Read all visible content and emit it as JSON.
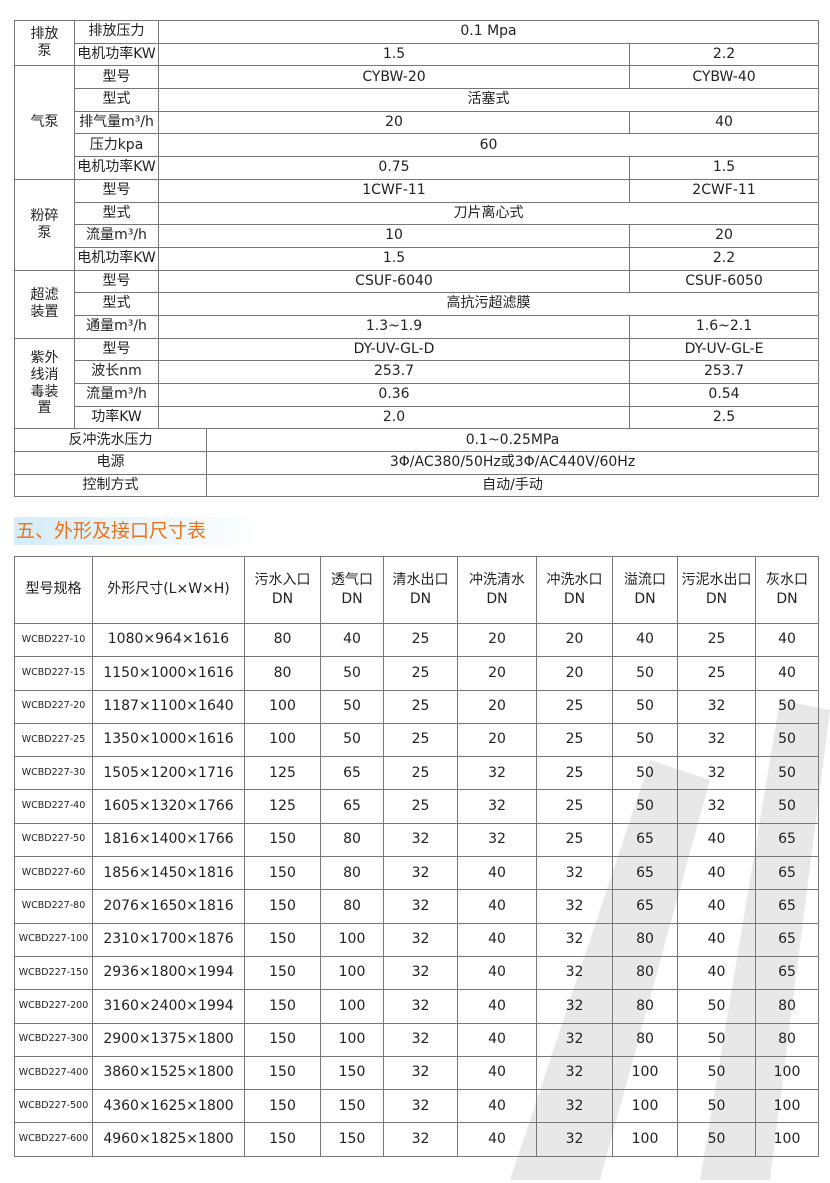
{
  "spec_table": {
    "groups": [
      {
        "name": "排放泵",
        "rows": [
          {
            "label": "排放压力",
            "a": "0.1 Mpa",
            "b": null
          },
          {
            "label": "电机功率KW",
            "a": "1.5",
            "b": "2.2"
          }
        ]
      },
      {
        "name": "气泵",
        "rows": [
          {
            "label": "型号",
            "a": "CYBW-20",
            "b": "CYBW-40"
          },
          {
            "label": "型式",
            "a": "活塞式",
            "b": null
          },
          {
            "label": "排气量m³/h",
            "a": "20",
            "b": "40"
          },
          {
            "label": "压力kpa",
            "a": "60",
            "b": null
          },
          {
            "label": "电机功率KW",
            "a": "0.75",
            "b": "1.5"
          }
        ]
      },
      {
        "name": "粉碎泵",
        "rows": [
          {
            "label": "型号",
            "a": "1CWF-11",
            "b": "2CWF-11"
          },
          {
            "label": "型式",
            "a": "刀片离心式",
            "b": null
          },
          {
            "label": "流量m³/h",
            "a": "10",
            "b": "20"
          },
          {
            "label": "电机功率KW",
            "a": "1.5",
            "b": "2.2"
          }
        ]
      },
      {
        "name": "超滤装置",
        "rows": [
          {
            "label": "型号",
            "a": "CSUF-6040",
            "b": "CSUF-6050"
          },
          {
            "label": "型式",
            "a": "高抗污超滤膜",
            "b": null
          },
          {
            "label": "通量m³/h",
            "a": "1.3~1.9",
            "b": "1.6~2.1"
          }
        ]
      },
      {
        "name": "紫外线消毒装置",
        "rows": [
          {
            "label": "型号",
            "a": "DY-UV-GL-D",
            "b": "DY-UV-GL-E"
          },
          {
            "label": "波长nm",
            "a": "253.7",
            "b": "253.7"
          },
          {
            "label": "流量m³/h",
            "a": "0.36",
            "b": "0.54"
          },
          {
            "label": "功率KW",
            "a": "2.0",
            "b": "2.5"
          }
        ]
      }
    ],
    "footer": [
      {
        "label": "反冲洗水压力",
        "value": "0.1~0.25MPa"
      },
      {
        "label": "电源",
        "value": "3Φ/AC380/50Hz或3Φ/AC440V/60Hz"
      },
      {
        "label": "控制方式",
        "value": "自动/手动"
      }
    ]
  },
  "section_title": "五、外形及接口尺寸表",
  "dim_table": {
    "headers": [
      [
        "型号规格",
        ""
      ],
      [
        "外形尺寸(L×W×H)",
        ""
      ],
      [
        "污水入口",
        "DN"
      ],
      [
        "透气口",
        "DN"
      ],
      [
        "清水出口",
        "DN"
      ],
      [
        "冲洗清水",
        "DN"
      ],
      [
        "冲洗水口",
        "DN"
      ],
      [
        "溢流口",
        "DN"
      ],
      [
        "污泥水出口",
        "DN"
      ],
      [
        "灰水口",
        "DN"
      ]
    ],
    "rows": [
      [
        "WCBD227-10",
        "1080×964×1616",
        "80",
        "40",
        "25",
        "20",
        "20",
        "40",
        "25",
        "40"
      ],
      [
        "WCBD227-15",
        "1150×1000×1616",
        "80",
        "50",
        "25",
        "20",
        "20",
        "50",
        "25",
        "40"
      ],
      [
        "WCBD227-20",
        "1187×1100×1640",
        "100",
        "50",
        "25",
        "20",
        "25",
        "50",
        "32",
        "50"
      ],
      [
        "WCBD227-25",
        "1350×1000×1616",
        "100",
        "50",
        "25",
        "20",
        "25",
        "50",
        "32",
        "50"
      ],
      [
        "WCBD227-30",
        "1505×1200×1716",
        "125",
        "65",
        "25",
        "32",
        "25",
        "50",
        "32",
        "50"
      ],
      [
        "WCBD227-40",
        "1605×1320×1766",
        "125",
        "65",
        "25",
        "32",
        "25",
        "50",
        "32",
        "50"
      ],
      [
        "WCBD227-50",
        "1816×1400×1766",
        "150",
        "80",
        "32",
        "32",
        "25",
        "65",
        "40",
        "65"
      ],
      [
        "WCBD227-60",
        "1856×1450×1816",
        "150",
        "80",
        "32",
        "40",
        "32",
        "65",
        "40",
        "65"
      ],
      [
        "WCBD227-80",
        "2076×1650×1816",
        "150",
        "80",
        "32",
        "40",
        "32",
        "65",
        "40",
        "65"
      ],
      [
        "WCBD227-100",
        "2310×1700×1876",
        "150",
        "100",
        "32",
        "40",
        "32",
        "80",
        "40",
        "65"
      ],
      [
        "WCBD227-150",
        "2936×1800×1994",
        "150",
        "100",
        "32",
        "40",
        "32",
        "80",
        "40",
        "65"
      ],
      [
        "WCBD227-200",
        "3160×2400×1994",
        "150",
        "100",
        "32",
        "40",
        "32",
        "80",
        "50",
        "80"
      ],
      [
        "WCBD227-300",
        "2900×1375×1800",
        "150",
        "100",
        "32",
        "40",
        "32",
        "80",
        "50",
        "80"
      ],
      [
        "WCBD227-400",
        "3860×1525×1800",
        "150",
        "150",
        "32",
        "40",
        "32",
        "100",
        "50",
        "100"
      ],
      [
        "WCBD227-500",
        "4360×1625×1800",
        "150",
        "150",
        "32",
        "40",
        "32",
        "100",
        "50",
        "100"
      ],
      [
        "WCBD227-600",
        "4960×1825×1800",
        "150",
        "150",
        "32",
        "40",
        "32",
        "100",
        "50",
        "100"
      ]
    ]
  },
  "colors": {
    "title": "#e8731c",
    "title_bg": "#d6ecf8",
    "border": "#777777"
  }
}
